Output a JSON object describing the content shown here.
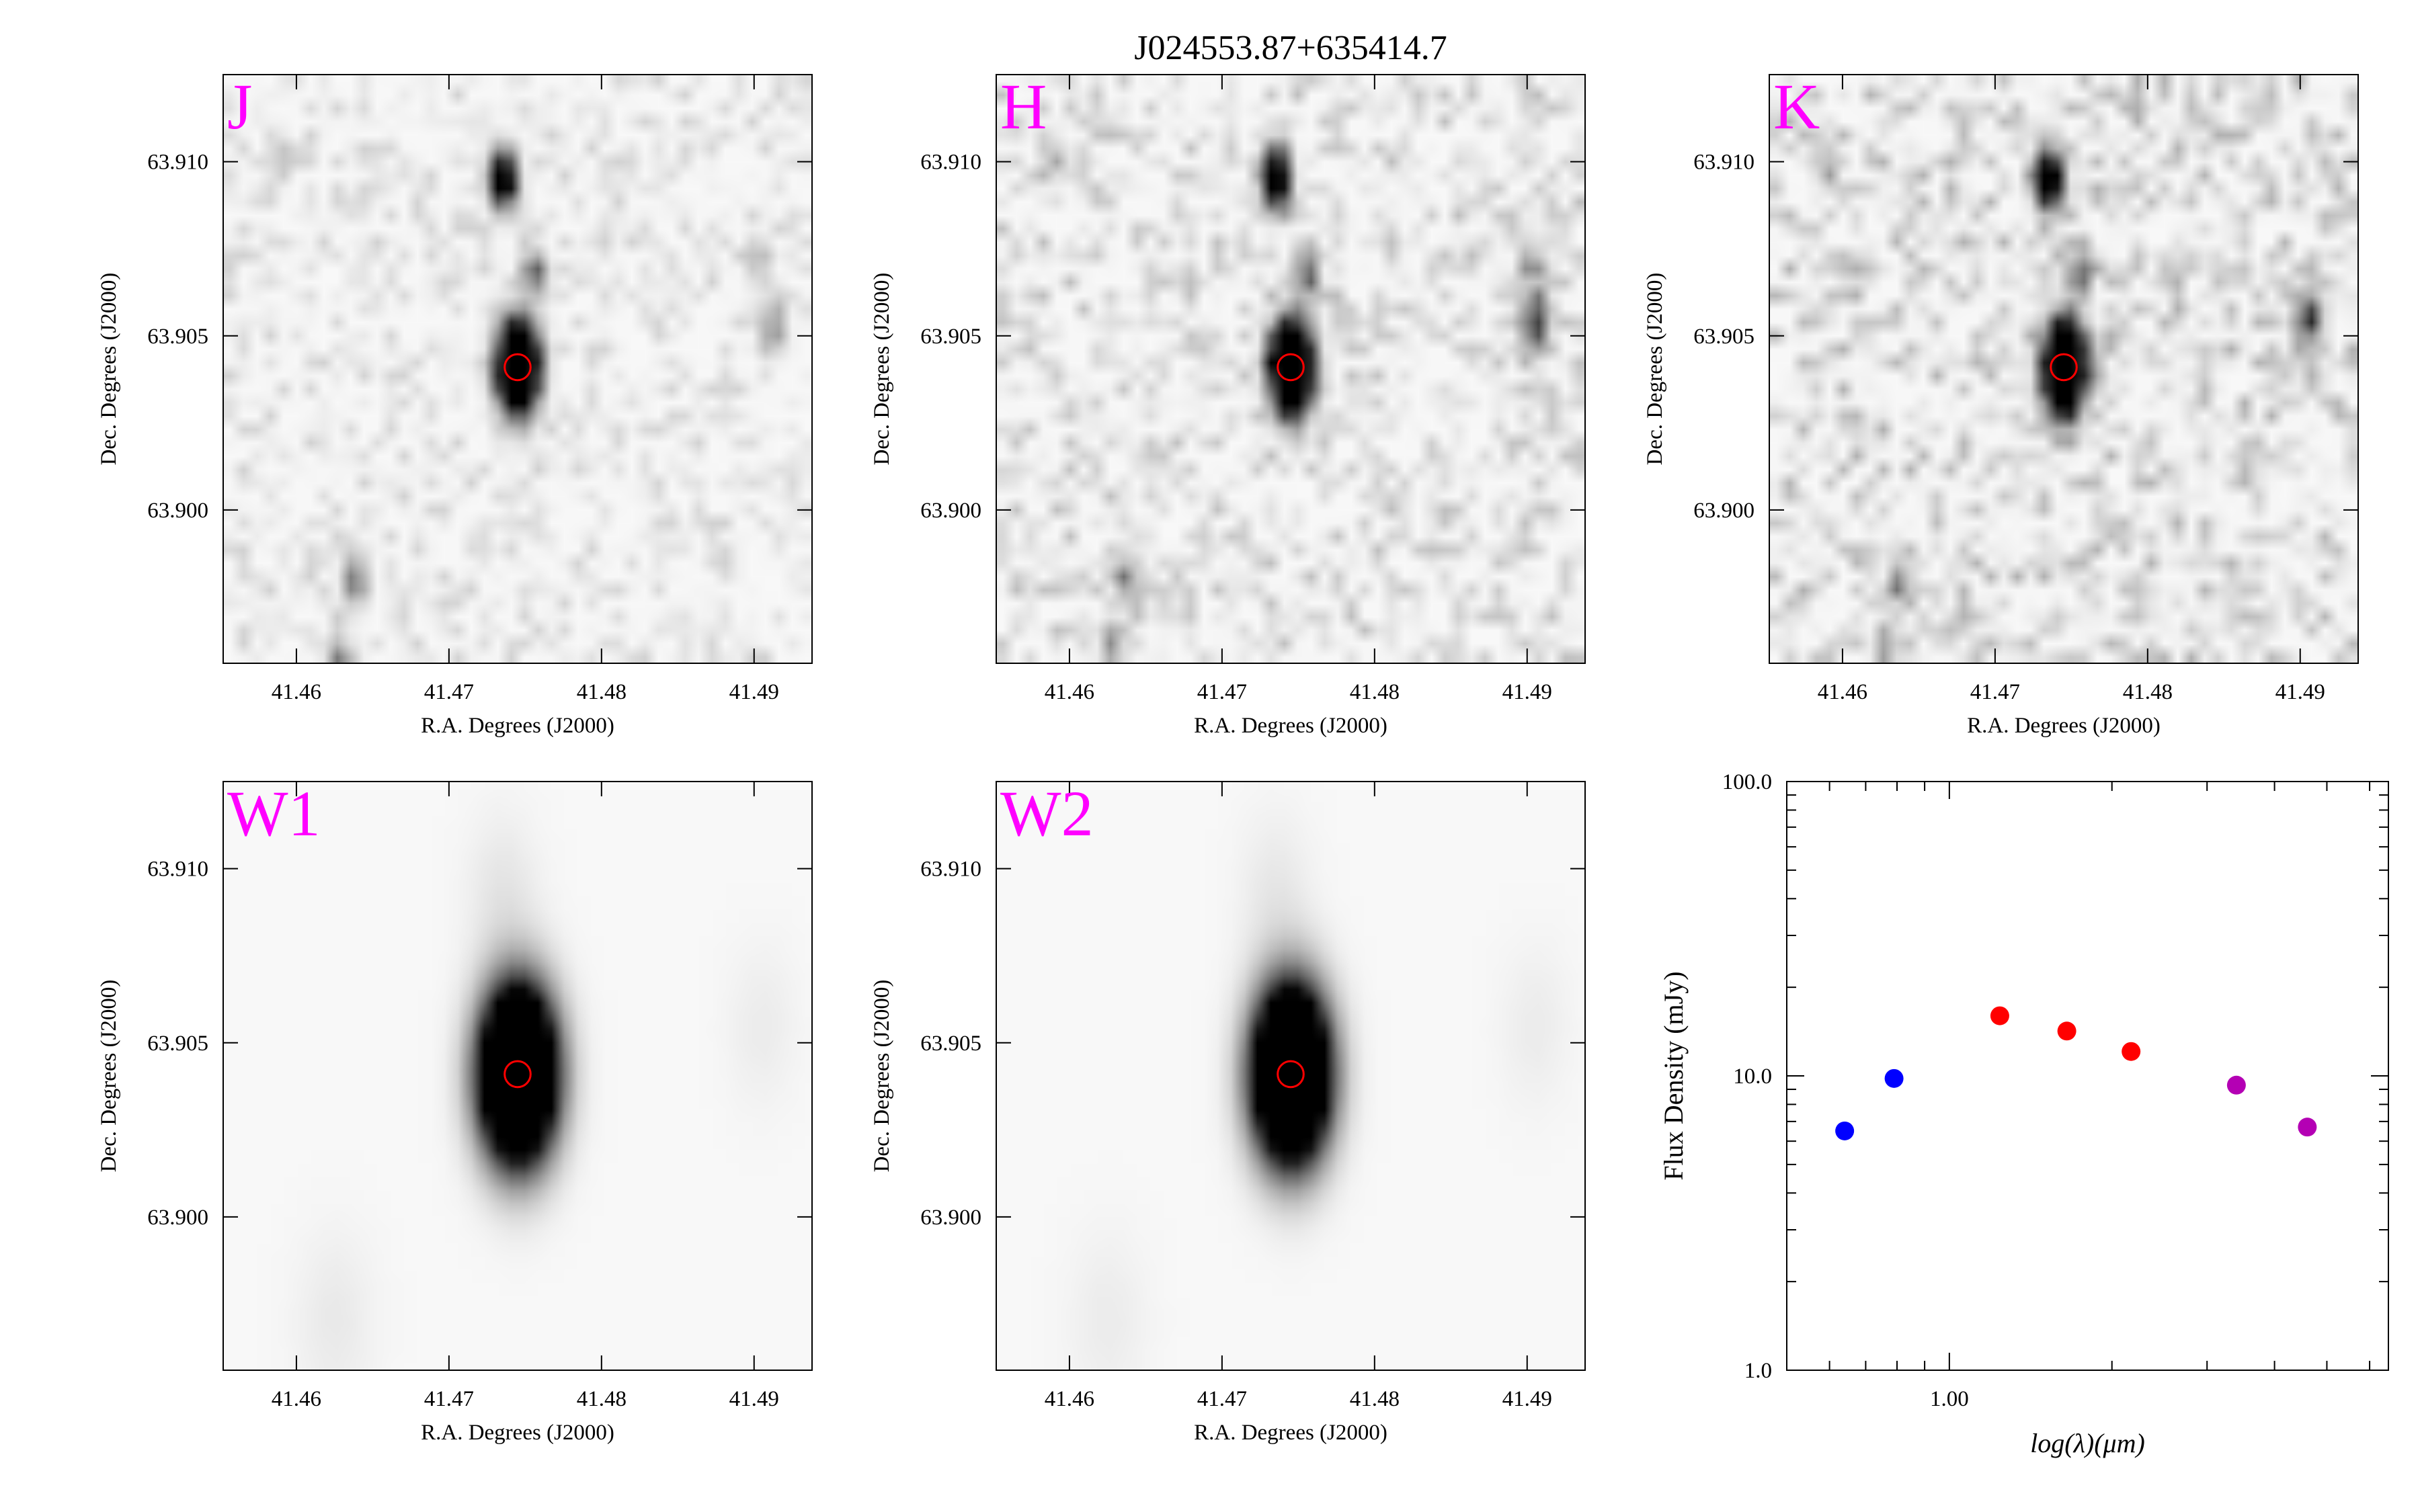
{
  "title": "J024553.87+635414.7",
  "image_panels": [
    {
      "band": "J",
      "noise_seed": 11,
      "noise_amp": 0.16,
      "sources": [
        {
          "ra": 41.4745,
          "dec": 63.9041,
          "sigma": 0.0008,
          "amp": 3.0
        },
        {
          "ra": 41.4735,
          "dec": 63.9095,
          "sigma": 0.00055,
          "amp": 1.5
        },
        {
          "ra": 41.4755,
          "dec": 63.9068,
          "sigma": 0.00045,
          "amp": 0.65
        },
        {
          "ra": 41.4588,
          "dec": 63.9101,
          "sigma": 0.00045,
          "amp": 0.25
        },
        {
          "ra": 41.4902,
          "dec": 63.9072,
          "sigma": 0.00045,
          "amp": 0.3
        },
        {
          "ra": 41.4912,
          "dec": 63.9053,
          "sigma": 0.0005,
          "amp": 0.4
        },
        {
          "ra": 41.4638,
          "dec": 63.898,
          "sigma": 0.0005,
          "amp": 0.5
        },
        {
          "ra": 41.4628,
          "dec": 63.8957,
          "sigma": 0.0005,
          "amp": 0.4
        }
      ]
    },
    {
      "band": "H",
      "noise_seed": 23,
      "noise_amp": 0.24,
      "sources": [
        {
          "ra": 41.4745,
          "dec": 63.9041,
          "sigma": 0.0008,
          "amp": 3.0
        },
        {
          "ra": 41.4735,
          "dec": 63.9095,
          "sigma": 0.00055,
          "amp": 1.6
        },
        {
          "ra": 41.4755,
          "dec": 63.9068,
          "sigma": 0.00045,
          "amp": 0.7
        },
        {
          "ra": 41.4588,
          "dec": 63.9101,
          "sigma": 0.00045,
          "amp": 0.25
        },
        {
          "ra": 41.4902,
          "dec": 63.9072,
          "sigma": 0.00045,
          "amp": 0.35
        },
        {
          "ra": 41.4905,
          "dec": 63.9055,
          "sigma": 0.0006,
          "amp": 0.7
        },
        {
          "ra": 41.4638,
          "dec": 63.898,
          "sigma": 0.0005,
          "amp": 0.4
        },
        {
          "ra": 41.4628,
          "dec": 63.896,
          "sigma": 0.0005,
          "amp": 0.35
        }
      ]
    },
    {
      "band": "K",
      "noise_seed": 37,
      "noise_amp": 0.3,
      "sources": [
        {
          "ra": 41.4745,
          "dec": 63.9041,
          "sigma": 0.0008,
          "amp": 3.0
        },
        {
          "ra": 41.4735,
          "dec": 63.9095,
          "sigma": 0.00055,
          "amp": 1.6
        },
        {
          "ra": 41.4755,
          "dec": 63.9068,
          "sigma": 0.00045,
          "amp": 0.7
        },
        {
          "ra": 41.4588,
          "dec": 63.9101,
          "sigma": 0.00045,
          "amp": 0.3
        },
        {
          "ra": 41.4905,
          "dec": 63.9055,
          "sigma": 0.0006,
          "amp": 0.6
        },
        {
          "ra": 41.4638,
          "dec": 63.898,
          "sigma": 0.0005,
          "amp": 0.35
        },
        {
          "ra": 41.4628,
          "dec": 63.896,
          "sigma": 0.0005,
          "amp": 0.35
        },
        {
          "ra": 41.4878,
          "dec": 63.9118,
          "sigma": 0.0004,
          "amp": 0.3
        }
      ]
    },
    {
      "band": "W1",
      "noise_seed": 0,
      "noise_amp": 0.0,
      "sources": [
        {
          "ra": 41.4745,
          "dec": 63.9041,
          "sigma": 0.0016,
          "amp": 3.2
        },
        {
          "ra": 41.4735,
          "dec": 63.9092,
          "sigma": 0.0016,
          "amp": 0.08
        },
        {
          "ra": 41.4905,
          "dec": 63.9055,
          "sigma": 0.0016,
          "amp": 0.05
        },
        {
          "ra": 41.4625,
          "dec": 63.897,
          "sigma": 0.0018,
          "amp": 0.06
        }
      ]
    },
    {
      "band": "W2",
      "noise_seed": 0,
      "noise_amp": 0.0,
      "sources": [
        {
          "ra": 41.4745,
          "dec": 63.9041,
          "sigma": 0.0016,
          "amp": 3.2
        },
        {
          "ra": 41.4735,
          "dec": 63.9092,
          "sigma": 0.0016,
          "amp": 0.07
        },
        {
          "ra": 41.4905,
          "dec": 63.9055,
          "sigma": 0.0016,
          "amp": 0.05
        },
        {
          "ra": 41.4625,
          "dec": 63.897,
          "sigma": 0.0018,
          "amp": 0.05
        }
      ]
    }
  ],
  "image_axes": {
    "xlabel": "R.A. Degrees (J2000)",
    "ylabel": "Dec. Degrees (J2000)",
    "xlim": [
      41.4552,
      41.4938
    ],
    "ylim": [
      63.8956,
      63.9125
    ],
    "xticks": [
      41.46,
      41.47,
      41.48,
      41.49
    ],
    "xtick_labels": [
      "41.46",
      "41.47",
      "41.48",
      "41.49"
    ],
    "yticks": [
      63.9,
      63.905,
      63.91
    ],
    "ytick_labels": [
      "63.900",
      "63.905",
      "63.910"
    ],
    "target_ra": 41.4745,
    "target_dec": 63.9041,
    "aperture_radius_deg": 0.00085,
    "aperture_color": "#ff0000",
    "label_color": "#ff00ff"
  },
  "chart_data": {
    "type": "scatter",
    "xlabel": "log(λ)(μm)",
    "ylabel": "Flux Density (mJy)",
    "x_scale": "log",
    "y_scale": "log",
    "xlim": [
      0.5,
      6.5
    ],
    "ylim": [
      1.0,
      100.0
    ],
    "x_major_ticks": [
      1.0
    ],
    "x_major_labels": [
      "1.00"
    ],
    "y_major_ticks": [
      1.0,
      10.0,
      100.0
    ],
    "y_major_labels": [
      "1.0",
      "10.0",
      "100.0"
    ],
    "series": [
      {
        "color": "#0000ff",
        "points": [
          {
            "x": 0.64,
            "y": 6.5
          },
          {
            "x": 0.79,
            "y": 9.8
          }
        ]
      },
      {
        "color": "#ff0000",
        "points": [
          {
            "x": 1.24,
            "y": 16.0
          },
          {
            "x": 1.65,
            "y": 14.2
          },
          {
            "x": 2.17,
            "y": 12.1
          }
        ]
      },
      {
        "color": "#b400b4",
        "points": [
          {
            "x": 3.4,
            "y": 9.3
          },
          {
            "x": 4.6,
            "y": 6.7
          }
        ]
      }
    ]
  }
}
